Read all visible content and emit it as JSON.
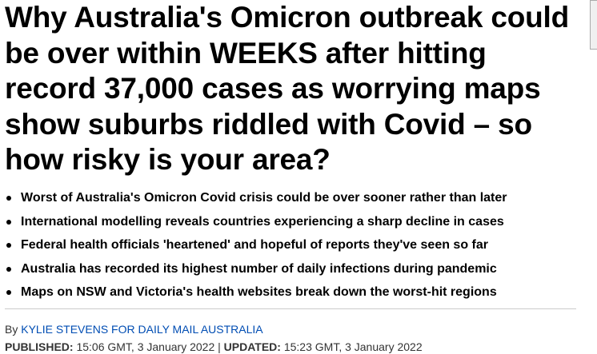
{
  "headline": "Why Australia's Omicron outbreak could be over within WEEKS after hitting record 37,000 cases as worrying maps show suburbs riddled with Covid – so how risky is your area?",
  "bullets": [
    "Worst of Australia's Omicron Covid crisis could be over sooner rather than later",
    "International modelling reveals countries experiencing a sharp decline in cases",
    "Federal health officials 'heartened' and hopeful of reports they've seen so far",
    "Australia has recorded its highest number of daily infections during pandemic",
    "Maps on NSW and Victoria's health websites break down the worst-hit regions"
  ],
  "byline": {
    "prefix": "By",
    "author": "KYLIE STEVENS FOR DAILY MAIL AUSTRALIA"
  },
  "published": {
    "label": "PUBLISHED:",
    "time": "15:06 GMT, 3 January 2022"
  },
  "separator": "|",
  "updated": {
    "label": "UPDATED:",
    "time": "15:23 GMT, 3 January 2022"
  }
}
